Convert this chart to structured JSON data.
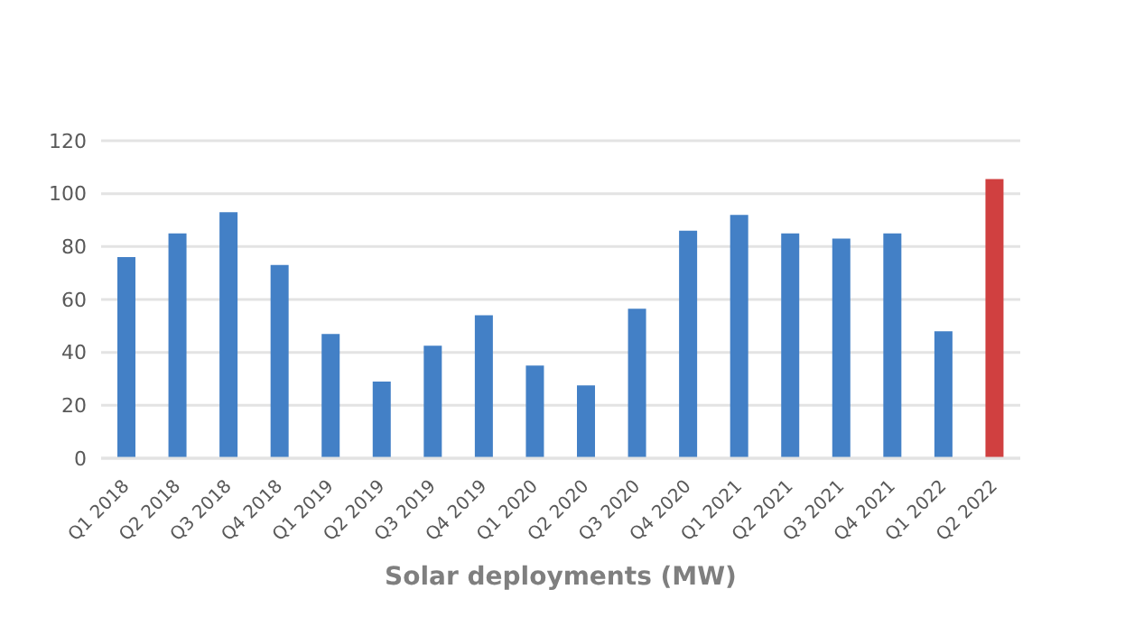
{
  "chart_data": {
    "type": "bar",
    "xlabel": "Solar deployments (MW)",
    "categories": [
      "Q1 2018",
      "Q2 2018",
      "Q3 2018",
      "Q4 2018",
      "Q1 2019",
      "Q2 2019",
      "Q3 2019",
      "Q4 2019",
      "Q1 2020",
      "Q2 2020",
      "Q3 2020",
      "Q4 2020",
      "Q1 2021",
      "Q2 2021",
      "Q3 2021",
      "Q4 2021",
      "Q1 2022",
      "Q2 2022"
    ],
    "values": [
      76,
      85,
      93,
      73,
      47,
      29,
      42.5,
      54,
      35,
      27.5,
      56.5,
      86,
      92,
      85,
      83,
      85,
      48,
      105.5
    ],
    "colors": [
      "#4380c6",
      "#4380c6",
      "#4380c6",
      "#4380c6",
      "#4380c6",
      "#4380c6",
      "#4380c6",
      "#4380c6",
      "#4380c6",
      "#4380c6",
      "#4380c6",
      "#4380c6",
      "#4380c6",
      "#4380c6",
      "#4380c6",
      "#4380c6",
      "#4380c6",
      "#d04040"
    ],
    "ylim": [
      0,
      120
    ],
    "yticks": [
      0,
      20,
      40,
      60,
      80,
      100,
      120
    ],
    "grid": "y",
    "legend": false
  }
}
